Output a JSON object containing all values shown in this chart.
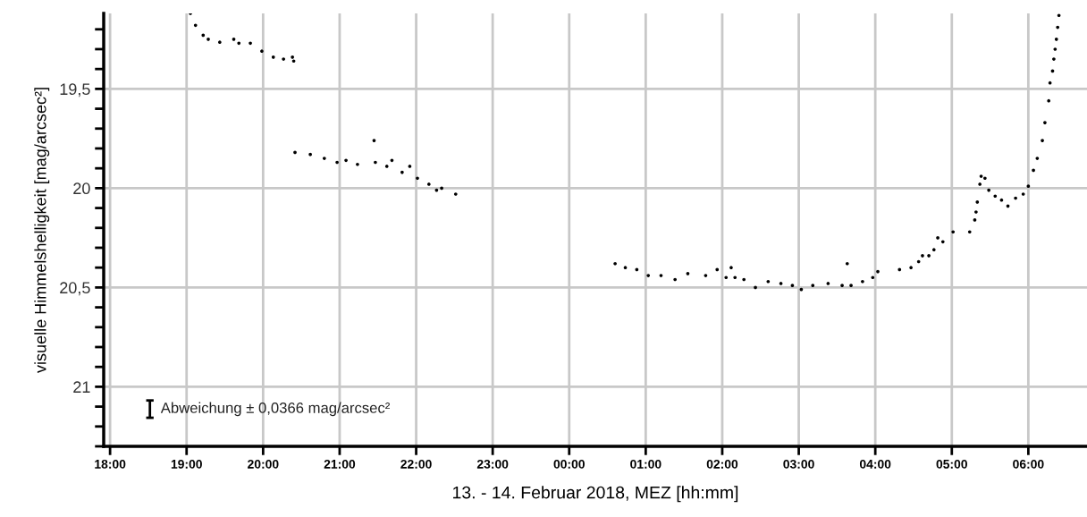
{
  "chart_data": {
    "type": "scatter",
    "xlabel": "13. - 14. Februar 2018, MEZ [hh:mm]",
    "ylabel": "visuelle Himmelshelligkeit [mag/arcsec²]",
    "annotations": [
      "Abweichung ± 0,0366 mag/arcsec²"
    ],
    "series": [
      {
        "color": "#000000",
        "x": [
          "2018-02-13T19:03",
          "2018-02-13T19:07",
          "2018-02-13T19:13",
          "2018-02-13T19:17",
          "2018-02-13T19:26",
          "2018-02-13T19:37",
          "2018-02-13T19:41",
          "2018-02-13T19:50",
          "2018-02-13T19:59",
          "2018-02-13T20:08",
          "2018-02-13T20:16",
          "2018-02-13T20:23",
          "2018-02-13T20:24",
          "2018-02-13T20:25",
          "2018-02-13T20:37",
          "2018-02-13T20:48",
          "2018-02-13T20:58",
          "2018-02-13T21:05",
          "2018-02-13T21:14",
          "2018-02-13T21:27",
          "2018-02-13T21:28",
          "2018-02-13T21:37",
          "2018-02-13T21:41",
          "2018-02-13T21:49",
          "2018-02-13T21:55",
          "2018-02-13T22:01",
          "2018-02-13T22:10",
          "2018-02-13T22:16",
          "2018-02-13T22:20",
          "2018-02-13T22:31",
          "2018-02-14T00:36",
          "2018-02-14T00:44",
          "2018-02-14T00:53",
          "2018-02-14T01:02",
          "2018-02-14T01:12",
          "2018-02-14T01:23",
          "2018-02-14T01:33",
          "2018-02-14T01:47",
          "2018-02-14T01:56",
          "2018-02-14T02:03",
          "2018-02-14T02:07",
          "2018-02-14T02:10",
          "2018-02-14T02:17",
          "2018-02-14T02:26",
          "2018-02-14T02:36",
          "2018-02-14T02:46",
          "2018-02-14T02:55",
          "2018-02-14T03:02",
          "2018-02-14T03:11",
          "2018-02-14T03:23",
          "2018-02-14T03:34",
          "2018-02-14T03:38",
          "2018-02-14T03:41",
          "2018-02-14T03:50",
          "2018-02-14T03:58",
          "2018-02-14T04:02",
          "2018-02-14T04:19",
          "2018-02-14T04:28",
          "2018-02-14T04:34",
          "2018-02-14T04:37",
          "2018-02-14T04:42",
          "2018-02-14T04:46",
          "2018-02-14T04:49",
          "2018-02-14T04:53",
          "2018-02-14T05:01",
          "2018-02-14T05:14",
          "2018-02-14T05:18",
          "2018-02-14T05:19",
          "2018-02-14T05:20",
          "2018-02-14T05:22",
          "2018-02-14T05:23",
          "2018-02-14T05:26",
          "2018-02-14T05:29",
          "2018-02-14T05:34",
          "2018-02-14T05:39",
          "2018-02-14T05:44",
          "2018-02-14T05:50",
          "2018-02-14T05:56",
          "2018-02-14T06:00",
          "2018-02-14T06:04",
          "2018-02-14T06:07",
          "2018-02-14T06:11",
          "2018-02-14T06:13",
          "2018-02-14T06:16",
          "2018-02-14T06:17",
          "2018-02-14T06:19",
          "2018-02-14T06:20",
          "2018-02-14T06:21",
          "2018-02-14T06:22",
          "2018-02-14T06:23",
          "2018-02-14T06:24"
        ],
        "values": [
          19.12,
          19.18,
          19.23,
          19.25,
          19.265,
          19.25,
          19.27,
          19.27,
          19.31,
          19.34,
          19.35,
          19.34,
          19.36,
          19.82,
          19.83,
          19.85,
          19.87,
          19.86,
          19.88,
          19.76,
          19.87,
          19.89,
          19.86,
          19.92,
          19.89,
          19.95,
          19.98,
          20.01,
          20.0,
          20.03,
          20.38,
          20.4,
          20.41,
          20.44,
          20.44,
          20.46,
          20.43,
          20.44,
          20.41,
          20.45,
          20.4,
          20.45,
          20.46,
          20.5,
          20.47,
          20.48,
          20.49,
          20.51,
          20.49,
          20.48,
          20.49,
          20.38,
          20.49,
          20.47,
          20.45,
          20.42,
          20.41,
          20.4,
          20.37,
          20.34,
          20.34,
          20.31,
          20.25,
          20.27,
          20.22,
          20.22,
          20.16,
          20.12,
          20.07,
          19.98,
          19.94,
          19.95,
          20.01,
          20.04,
          20.06,
          20.09,
          20.05,
          20.03,
          19.99,
          19.91,
          19.85,
          19.76,
          19.67,
          19.56,
          19.47,
          19.41,
          19.35,
          19.3,
          19.25,
          19.19,
          19.13
        ]
      }
    ],
    "marker": "circle",
    "xlim": [
      "2018-02-13T17:55",
      "2018-02-14T06:46"
    ],
    "xticks": [
      {
        "value": "2018-02-13T18:00",
        "label": "18:00"
      },
      {
        "value": "2018-02-13T19:00",
        "label": "19:00"
      },
      {
        "value": "2018-02-13T20:00",
        "label": "20:00"
      },
      {
        "value": "2018-02-13T21:00",
        "label": "21:00"
      },
      {
        "value": "2018-02-13T22:00",
        "label": "22:00"
      },
      {
        "value": "2018-02-13T23:00",
        "label": "23:00"
      },
      {
        "value": "2018-02-14T00:00",
        "label": "00:00"
      },
      {
        "value": "2018-02-14T01:00",
        "label": "01:00"
      },
      {
        "value": "2018-02-14T02:00",
        "label": "02:00"
      },
      {
        "value": "2018-02-14T03:00",
        "label": "03:00"
      },
      {
        "value": "2018-02-14T04:00",
        "label": "04:00"
      },
      {
        "value": "2018-02-14T05:00",
        "label": "05:00"
      },
      {
        "value": "2018-02-14T06:00",
        "label": "06:00"
      }
    ],
    "ylim": [
      21.3,
      19.12
    ],
    "yticks": [
      {
        "value": 19.5,
        "label": "19,5"
      },
      20,
      {
        "value": 20.5,
        "label": "20,5"
      },
      21
    ],
    "grid": true
  }
}
